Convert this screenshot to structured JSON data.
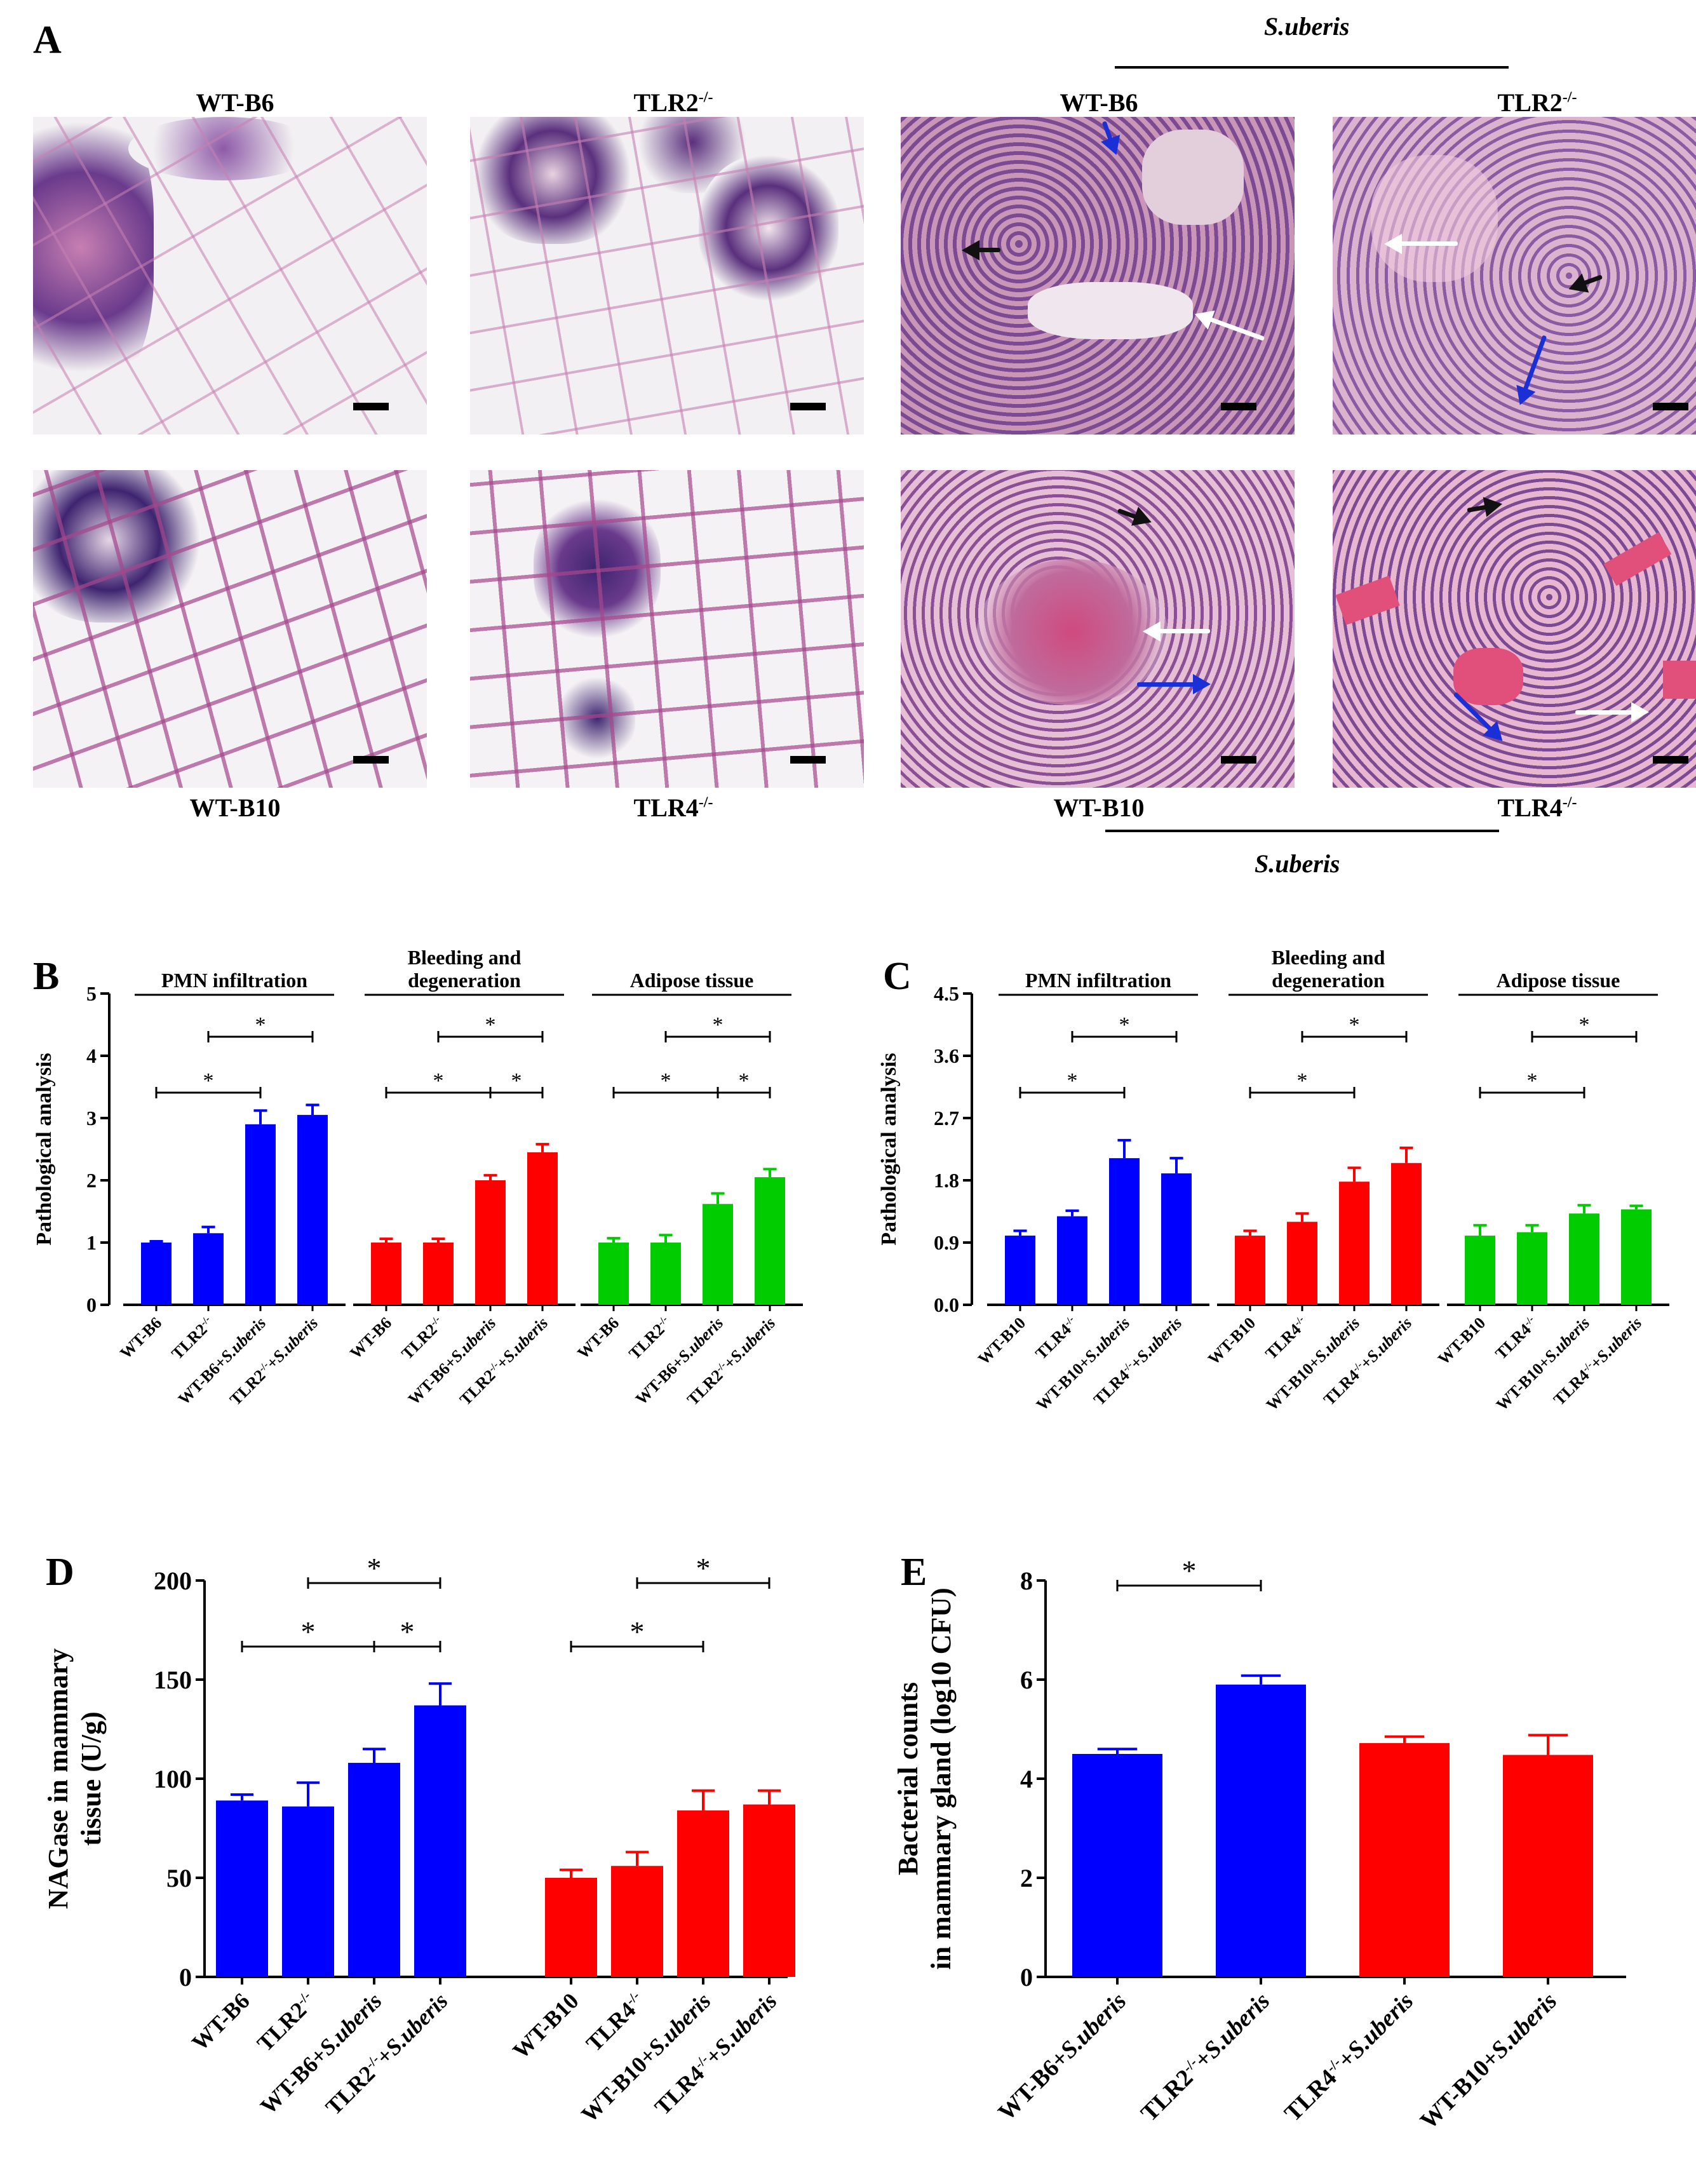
{
  "panel_labels": {
    "A": "A",
    "B": "B",
    "C": "C",
    "D": "D",
    "E": "E"
  },
  "histology": {
    "treatment_label": "S.uberis",
    "top_captions": [
      "WT-B6",
      "TLR2",
      "WT-B6",
      "TLR2"
    ],
    "bottom_captions": [
      "WT-B10",
      "TLR4",
      "WT-B10",
      "TLR4"
    ],
    "knockout_superscript": "-/-",
    "arrow_colors": {
      "black": "#111111",
      "blue": "#1a2fd6",
      "white": "#ffffff"
    },
    "tissue_colors": {
      "fat": "#f2f0f2",
      "stain": "#c77fb2",
      "dark": "#5a2f7d",
      "inflamed": "#b0679f",
      "blood": "#e0507a"
    }
  },
  "chart_data": [
    {
      "id": "B",
      "type": "bar",
      "ylabel": "Pathological analysis",
      "ylim": [
        0,
        5
      ],
      "yticks": [
        "0",
        "1",
        "2",
        "3",
        "4",
        "5"
      ],
      "groups": [
        {
          "title": "PMN infiltration",
          "title2": "",
          "color": "#0000ff",
          "categories": [
            "WT-B6",
            "TLR2-/-",
            "WT-B6+S.uberis",
            "TLR2-/-+S.uberis"
          ],
          "values": [
            1.0,
            1.15,
            2.9,
            3.05
          ],
          "errors": [
            0.02,
            0.1,
            0.22,
            0.16
          ]
        },
        {
          "title": "Bleeding and",
          "title2": "degeneration",
          "color": "#ff0000",
          "categories": [
            "WT-B6",
            "TLR2-/-",
            "WT-B6+S.uberis",
            "TLR2-/-+S.uberis"
          ],
          "values": [
            1.0,
            1.0,
            2.0,
            2.45
          ],
          "errors": [
            0.06,
            0.06,
            0.08,
            0.13
          ]
        },
        {
          "title": "Adipose tissue",
          "title2": "",
          "color": "#00cc00",
          "categories": [
            "WT-B6",
            "TLR2-/-",
            "WT-B6+S.uberis",
            "TLR2-/-+S.uberis"
          ],
          "values": [
            1.0,
            1.0,
            1.62,
            2.05
          ],
          "errors": [
            0.07,
            0.12,
            0.17,
            0.13
          ]
        }
      ],
      "significance": "*"
    },
    {
      "id": "C",
      "type": "bar",
      "ylabel": "Pathological analysis",
      "ylim": [
        0,
        4.5
      ],
      "yticks": [
        "0.0",
        "0.9",
        "1.8",
        "2.7",
        "3.6",
        "4.5"
      ],
      "groups": [
        {
          "title": "PMN infiltration",
          "title2": "",
          "color": "#0000ff",
          "categories": [
            "WT-B10",
            "TLR4-/-",
            "WT-B10+S.uberis",
            "TLR4-/-+S.uberis"
          ],
          "values": [
            1.0,
            1.28,
            2.12,
            1.9
          ],
          "errors": [
            0.07,
            0.08,
            0.26,
            0.22
          ]
        },
        {
          "title": "Bleeding and",
          "title2": "degeneration",
          "color": "#ff0000",
          "categories": [
            "WT-B10",
            "TLR4-/-",
            "WT-B10+S.uberis",
            "TLR4-/-+S.uberis"
          ],
          "values": [
            1.0,
            1.2,
            1.78,
            2.05
          ],
          "errors": [
            0.07,
            0.12,
            0.2,
            0.22
          ]
        },
        {
          "title": "Adipose tissue",
          "title2": "",
          "color": "#00cc00",
          "categories": [
            "WT-B10",
            "TLR4-/-",
            "WT-B10+S.uberis",
            "TLR4-/-+S.uberis"
          ],
          "values": [
            1.0,
            1.05,
            1.32,
            1.38
          ],
          "errors": [
            0.15,
            0.1,
            0.12,
            0.05
          ]
        }
      ],
      "significance": "*"
    },
    {
      "id": "D",
      "type": "bar",
      "ylabel": "NAGase in mammary",
      "ylabel2": "tissue (U/g)",
      "ylim": [
        0,
        200
      ],
      "yticks": [
        "0",
        "50",
        "100",
        "150",
        "200"
      ],
      "groups": [
        {
          "color": "#0000ff",
          "categories": [
            "WT-B6",
            "TLR2-/-",
            "WT-B6+S.uberis",
            "TLR2-/-+S.uberis"
          ],
          "values": [
            89,
            86,
            108,
            137
          ],
          "errors": [
            3,
            12,
            7,
            11
          ]
        },
        {
          "color": "#ff0000",
          "categories": [
            "WT-B10",
            "TLR4-/-",
            "WT-B10+S.uberis",
            "TLR4-/-+S.uberis"
          ],
          "values": [
            50,
            56,
            84,
            87
          ],
          "errors": [
            4,
            7,
            10,
            7
          ]
        }
      ],
      "significance": "*"
    },
    {
      "id": "E",
      "type": "bar",
      "ylabel": "Bacterial counts",
      "ylabel2": "in mammary gland (log10 CFU)",
      "ylim": [
        0,
        8
      ],
      "yticks": [
        "0",
        "2",
        "4",
        "6",
        "8"
      ],
      "categories": [
        "WT-B6+S.uberis",
        "TLR2-/-+S.uberis",
        "TLR4-/-+S.uberis",
        "WT-B10+S.uberis"
      ],
      "values": [
        4.5,
        5.9,
        4.72,
        4.48
      ],
      "errors": [
        0.1,
        0.18,
        0.13,
        0.4
      ],
      "colors": [
        "#0000ff",
        "#0000ff",
        "#ff0000",
        "#ff0000"
      ],
      "significance": "*"
    }
  ]
}
